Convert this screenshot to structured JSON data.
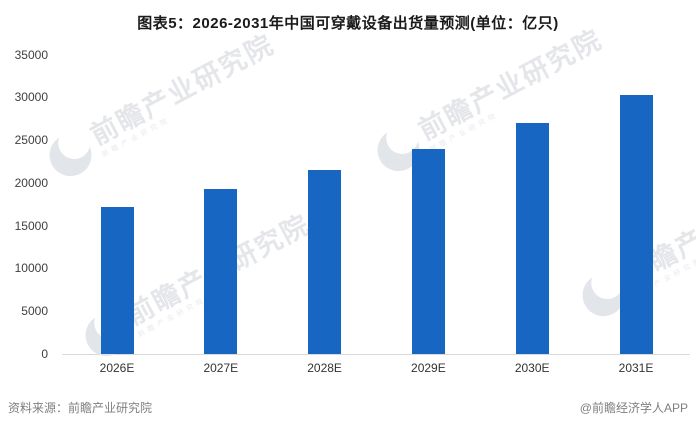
{
  "title": "图表5：2026-2031年中国可穿戴设备出货量预测(单位：亿只)",
  "chart_data": {
    "type": "bar",
    "title": "图表5：2026-2031年中国可穿戴设备出货量预测(单位：亿只)",
    "unit_label": "亿只",
    "categories": [
      "2026E",
      "2027E",
      "2028E",
      "2029E",
      "2030E",
      "2031E"
    ],
    "values": [
      17200,
      19300,
      21500,
      24000,
      27000,
      30300
    ],
    "xlabel": "",
    "ylabel": "",
    "ylim": [
      0,
      35000
    ],
    "y_ticks": [
      0,
      5000,
      10000,
      15000,
      20000,
      25000,
      30000,
      35000
    ],
    "grid": false,
    "legend_position": "none",
    "bar_color": "#1766C2"
  },
  "colors": {
    "bar": "#1766C2",
    "axis_line": "#d9d9d9",
    "tick_label": "#3f3f3f",
    "footer_text": "#7f7f7f",
    "watermark": "#e4e6ea"
  },
  "footer": {
    "source": "资料来源：前瞻产业研究院",
    "credit": "@前瞻经济学人APP"
  },
  "watermark": {
    "text": "前瞻产业研究院",
    "sub_text": "前瞻产业研究院"
  }
}
